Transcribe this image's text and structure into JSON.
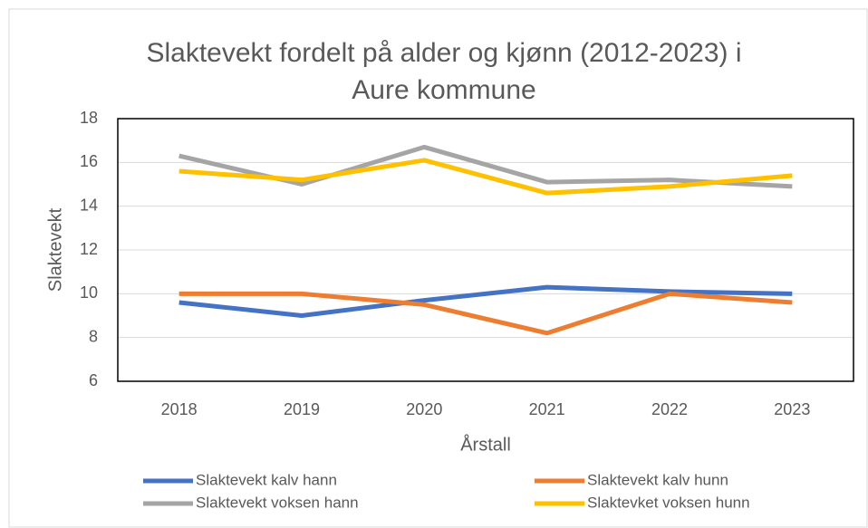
{
  "chart_data": {
    "type": "line",
    "title": [
      "Slaktevekt fordelt på alder og kjønn (2012-2023) i",
      "Aure kommune"
    ],
    "x_label": "Årstall",
    "y_label": "Slaktevekt",
    "categories": [
      "2018",
      "2019",
      "2020",
      "2021",
      "2022",
      "2023"
    ],
    "series": [
      {
        "name": "Slaktevekt kalv hann",
        "color": "#4472c4",
        "values": [
          9.6,
          9.0,
          9.7,
          10.3,
          10.1,
          10.0
        ]
      },
      {
        "name": "Slaktevekt kalv hunn",
        "color": "#ed7d31",
        "values": [
          10.0,
          10.0,
          9.5,
          8.2,
          10.0,
          9.6
        ]
      },
      {
        "name": "Slaktevekt voksen hann",
        "color": "#a5a5a5",
        "values": [
          16.3,
          15.0,
          16.7,
          15.1,
          15.2,
          14.9
        ]
      },
      {
        "name": "Slaktevket voksen hunn",
        "color": "#ffc000",
        "values": [
          15.6,
          15.2,
          16.1,
          14.6,
          14.9,
          15.4
        ]
      }
    ],
    "ylim": [
      6,
      18
    ],
    "yticks": [
      6,
      8,
      10,
      12,
      14,
      16,
      18
    ],
    "grid": true
  }
}
